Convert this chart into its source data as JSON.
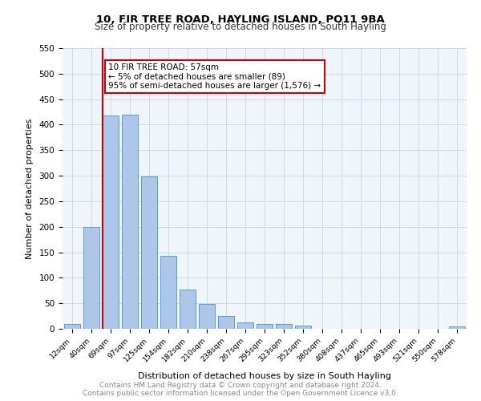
{
  "title": "10, FIR TREE ROAD, HAYLING ISLAND, PO11 9BA",
  "subtitle": "Size of property relative to detached houses in South Hayling",
  "xlabel": "Distribution of detached houses by size in South Hayling",
  "ylabel": "Number of detached properties",
  "categories": [
    "12sqm",
    "40sqm",
    "69sqm",
    "97sqm",
    "125sqm",
    "154sqm",
    "182sqm",
    "210sqm",
    "238sqm",
    "267sqm",
    "295sqm",
    "323sqm",
    "352sqm",
    "380sqm",
    "408sqm",
    "437sqm",
    "465sqm",
    "493sqm",
    "521sqm",
    "550sqm",
    "578sqm"
  ],
  "values": [
    10,
    200,
    418,
    420,
    298,
    143,
    77,
    49,
    25,
    13,
    10,
    10,
    7,
    0,
    0,
    0,
    0,
    0,
    0,
    0,
    5
  ],
  "bar_color": "#aec6e8",
  "bar_edge_color": "#5b9bd5",
  "vline_x": 1,
  "vline_color": "#cc0000",
  "annotation_text": "10 FIR TREE ROAD: 57sqm\n← 5% of detached houses are smaller (89)\n95% of semi-detached houses are larger (1,576) →",
  "annotation_box_color": "#ffffff",
  "annotation_box_edge_color": "#cc0000",
  "ylim": [
    0,
    550
  ],
  "yticks": [
    0,
    50,
    100,
    150,
    200,
    250,
    300,
    350,
    400,
    450,
    500,
    550
  ],
  "footer_text": "Contains HM Land Registry data © Crown copyright and database right 2024.\nContains public sector information licensed under the Open Government Licence v3.0.",
  "grid_color": "#d0d8e8",
  "background_color": "#f0f4fb"
}
